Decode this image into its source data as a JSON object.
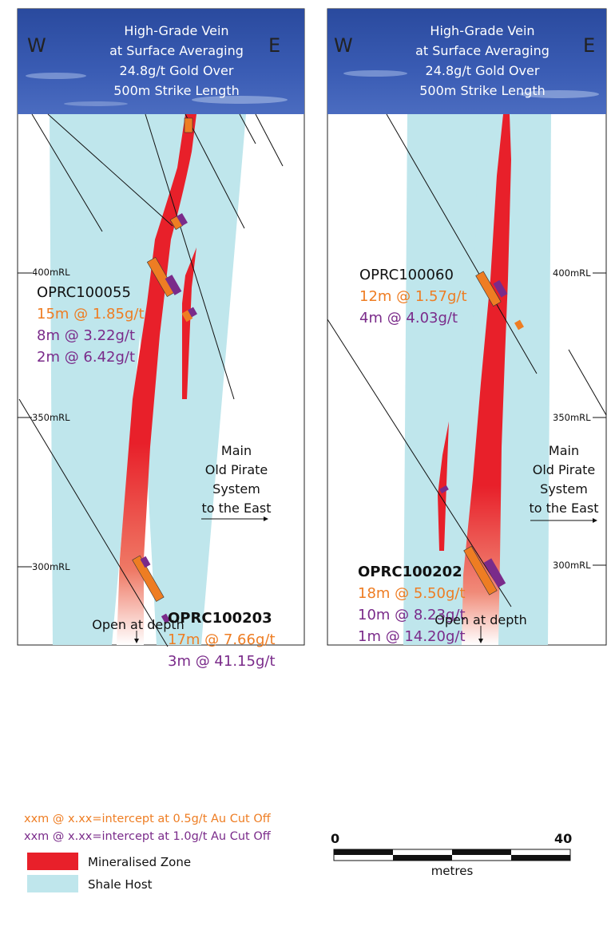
{
  "panels": [
    {
      "id": "left",
      "west_label": "W",
      "east_label": "E",
      "banner": [
        "High-Grade Vein",
        "at Surface Averaging",
        "24.8g/t Gold Over",
        "500m Strike Length"
      ],
      "rl_labels": [
        "400mRL",
        "350mRL",
        "300mRL"
      ],
      "holes": [
        {
          "name": "OPRC100055",
          "bold": false,
          "intercepts": [
            {
              "text": "15m @ 1.85g/t",
              "cutoff": "0.5"
            },
            {
              "text": "8m @ 3.22g/t",
              "cutoff": "1.0"
            },
            {
              "text": "2m @ 6.42g/t",
              "cutoff": "1.0"
            }
          ]
        },
        {
          "name": "OPRC100203",
          "bold": true,
          "intercepts": [
            {
              "text": "17m @ 7.66g/t",
              "cutoff": "0.5"
            },
            {
              "text": "3m @ 41.15g/t",
              "cutoff": "1.0"
            }
          ]
        }
      ],
      "system_label": [
        "Main",
        "Old Pirate",
        "System",
        "to the East"
      ],
      "depth_label": "Open at depth"
    },
    {
      "id": "right",
      "west_label": "W",
      "east_label": "E",
      "banner": [
        "High-Grade Vein",
        "at Surface Averaging",
        "24.8g/t Gold Over",
        "500m Strike Length"
      ],
      "rl_labels": [
        "400mRL",
        "350mRL",
        "300mRL"
      ],
      "holes": [
        {
          "name": "OPRC100060",
          "bold": false,
          "intercepts": [
            {
              "text": "12m @ 1.57g/t",
              "cutoff": "0.5"
            },
            {
              "text": "4m @ 4.03g/t",
              "cutoff": "1.0"
            }
          ]
        },
        {
          "name": "OPRC100202",
          "bold": true,
          "intercepts": [
            {
              "text": "18m @ 5.50g/t",
              "cutoff": "0.5"
            },
            {
              "text": "10m @ 8.23g/t",
              "cutoff": "1.0"
            },
            {
              "text": "1m @ 14.20g/t",
              "cutoff": "1.0"
            }
          ]
        }
      ],
      "system_label": [
        "Main",
        "Old Pirate",
        "System",
        "to the East"
      ],
      "depth_label": "Open at depth"
    }
  ],
  "legend": {
    "cutoff_05": "xxm @ x.xx=intercept at 0.5g/t Au Cut Off",
    "cutoff_10": "xxm @ x.xx=intercept at 1.0g/t Au Cut Off",
    "mineralised": "Mineralised Zone",
    "shale": "Shale Host"
  },
  "scale_bar": {
    "start": "0",
    "end": "40",
    "unit": "metres"
  },
  "colors": {
    "mineralised": "#e8202a",
    "shale": "#bfe6ec",
    "orange": "#ee7d23",
    "purple": "#7a2b8a",
    "sky": "#2f4fa3"
  }
}
